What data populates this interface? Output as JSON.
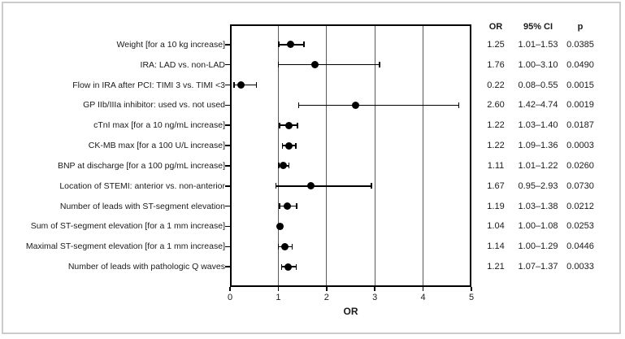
{
  "table": {
    "headers": {
      "or": "OR",
      "ci": "95% CI",
      "p": "p"
    }
  },
  "chart_data": {
    "type": "scatter",
    "variant": "forest-plot",
    "title": "",
    "xlabel": "OR",
    "ylabel": "",
    "xlim": [
      0,
      5
    ],
    "x_ticks": [
      "0",
      "1",
      "2",
      "3",
      "4",
      "5"
    ],
    "x_gridlines": [
      1,
      2,
      3,
      4
    ],
    "grid": "vertical",
    "legend": "none",
    "marker_color": "#000000",
    "gridline_color": "#595959",
    "rows": [
      {
        "label": "Weight [for a 10 kg increase]",
        "or": 1.25,
        "ci_low": 1.01,
        "ci_high": 1.53,
        "or_text": "1.25",
        "ci_text": "1.01–1.53",
        "p_text": "0.0385"
      },
      {
        "label": "IRA: LAD vs. non-LAD",
        "or": 1.76,
        "ci_low": 1.0,
        "ci_high": 3.1,
        "or_text": "1.76",
        "ci_text": "1.00–3.10",
        "p_text": "0.0490"
      },
      {
        "label": "Flow in IRA after PCI: TIMI 3 vs. TIMI <3",
        "or": 0.22,
        "ci_low": 0.08,
        "ci_high": 0.55,
        "or_text": "0.22",
        "ci_text": "0.08–0.55",
        "p_text": "0.0015"
      },
      {
        "label": "GP IIb/IIIa inhibitor: used vs. not used",
        "or": 2.6,
        "ci_low": 1.42,
        "ci_high": 4.74,
        "or_text": "2.60",
        "ci_text": "1.42–4.74",
        "p_text": "0.0019"
      },
      {
        "label": "cTnI max [for a 10 ng/mL increase]",
        "or": 1.22,
        "ci_low": 1.03,
        "ci_high": 1.4,
        "or_text": "1.22",
        "ci_text": "1.03–1.40",
        "p_text": "0.0187"
      },
      {
        "label": "CK-MB max [for a 100 U/L increase]",
        "or": 1.22,
        "ci_low": 1.09,
        "ci_high": 1.36,
        "or_text": "1.22",
        "ci_text": "1.09–1.36",
        "p_text": "0.0003"
      },
      {
        "label": "BNP at discharge [for a 100 pg/mL increase]",
        "or": 1.11,
        "ci_low": 1.01,
        "ci_high": 1.22,
        "or_text": "1.11",
        "ci_text": "1.01–1.22",
        "p_text": "0.0260"
      },
      {
        "label": "Location of STEMI: anterior vs. non-anterior",
        "or": 1.67,
        "ci_low": 0.95,
        "ci_high": 2.93,
        "or_text": "1.67",
        "ci_text": "0.95–2.93",
        "p_text": "0.0730"
      },
      {
        "label": "Number of leads with ST-segment elevation",
        "or": 1.19,
        "ci_low": 1.03,
        "ci_high": 1.38,
        "or_text": "1.19",
        "ci_text": "1.03–1.38",
        "p_text": "0.0212"
      },
      {
        "label": "Sum of ST-segment elevation [for a 1 mm increase]",
        "or": 1.04,
        "ci_low": 1.0,
        "ci_high": 1.08,
        "or_text": "1.04",
        "ci_text": "1.00–1.08",
        "p_text": "0.0253"
      },
      {
        "label": "Maximal ST-segment elevation [for a 1 mm increase]",
        "or": 1.14,
        "ci_low": 1.0,
        "ci_high": 1.29,
        "or_text": "1.14",
        "ci_text": "1.00–1.29",
        "p_text": "0.0446"
      },
      {
        "label": "Number of leads with pathologic Q waves",
        "or": 1.21,
        "ci_low": 1.07,
        "ci_high": 1.37,
        "or_text": "1.21",
        "ci_text": "1.07–1.37",
        "p_text": "0.0033"
      }
    ]
  }
}
